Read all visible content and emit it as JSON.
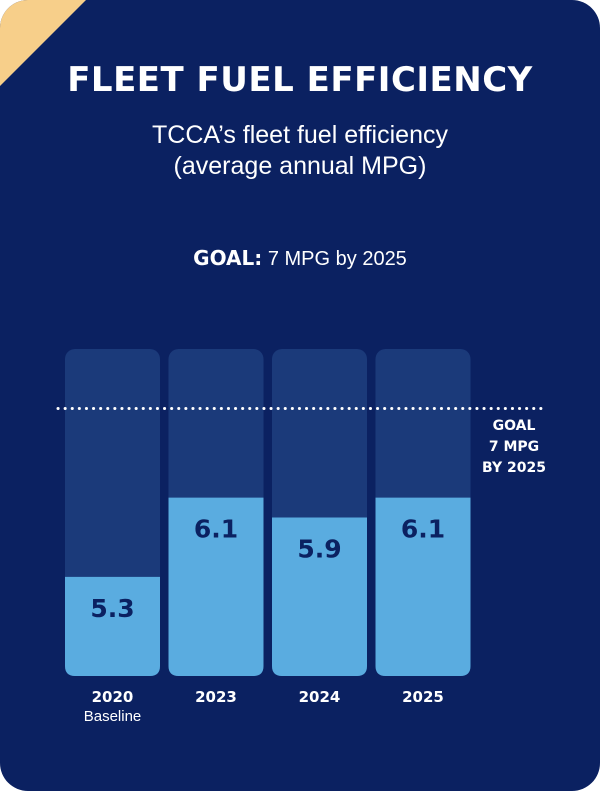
{
  "title": "FLEET FUEL EFFICIENCY",
  "subtitle_line1": "TCCA’s fleet fuel efficiency",
  "subtitle_line2": "(average annual MPG)",
  "goal": {
    "bold": "GOAL:",
    "text": "7 MPG by 2025"
  },
  "colors": {
    "background": "#0b2161",
    "bar_track": "#1b3a7a",
    "bar_fill": "#5aace0",
    "accent": "#f7cf8a",
    "text": "#ffffff",
    "value_text": "#0b2161"
  },
  "chart_data": {
    "type": "bar",
    "categories": [
      "2020 Baseline",
      "2023",
      "2024",
      "2025"
    ],
    "category_labels": [
      {
        "line1": "2020",
        "line2": "Baseline"
      },
      {
        "line1": "2023",
        "line2": ""
      },
      {
        "line1": "2024",
        "line2": ""
      },
      {
        "line1": "2025",
        "line2": ""
      }
    ],
    "values": [
      5.3,
      6.1,
      5.9,
      6.1
    ],
    "data_labels": [
      "5.3",
      "6.1",
      "5.9",
      "6.1"
    ],
    "ylim": [
      4.3,
      7.6
    ],
    "goal_value": 7,
    "goal_label": [
      "GOAL",
      "7 MPG",
      "BY 2025"
    ],
    "grid": false,
    "legend": "none"
  }
}
